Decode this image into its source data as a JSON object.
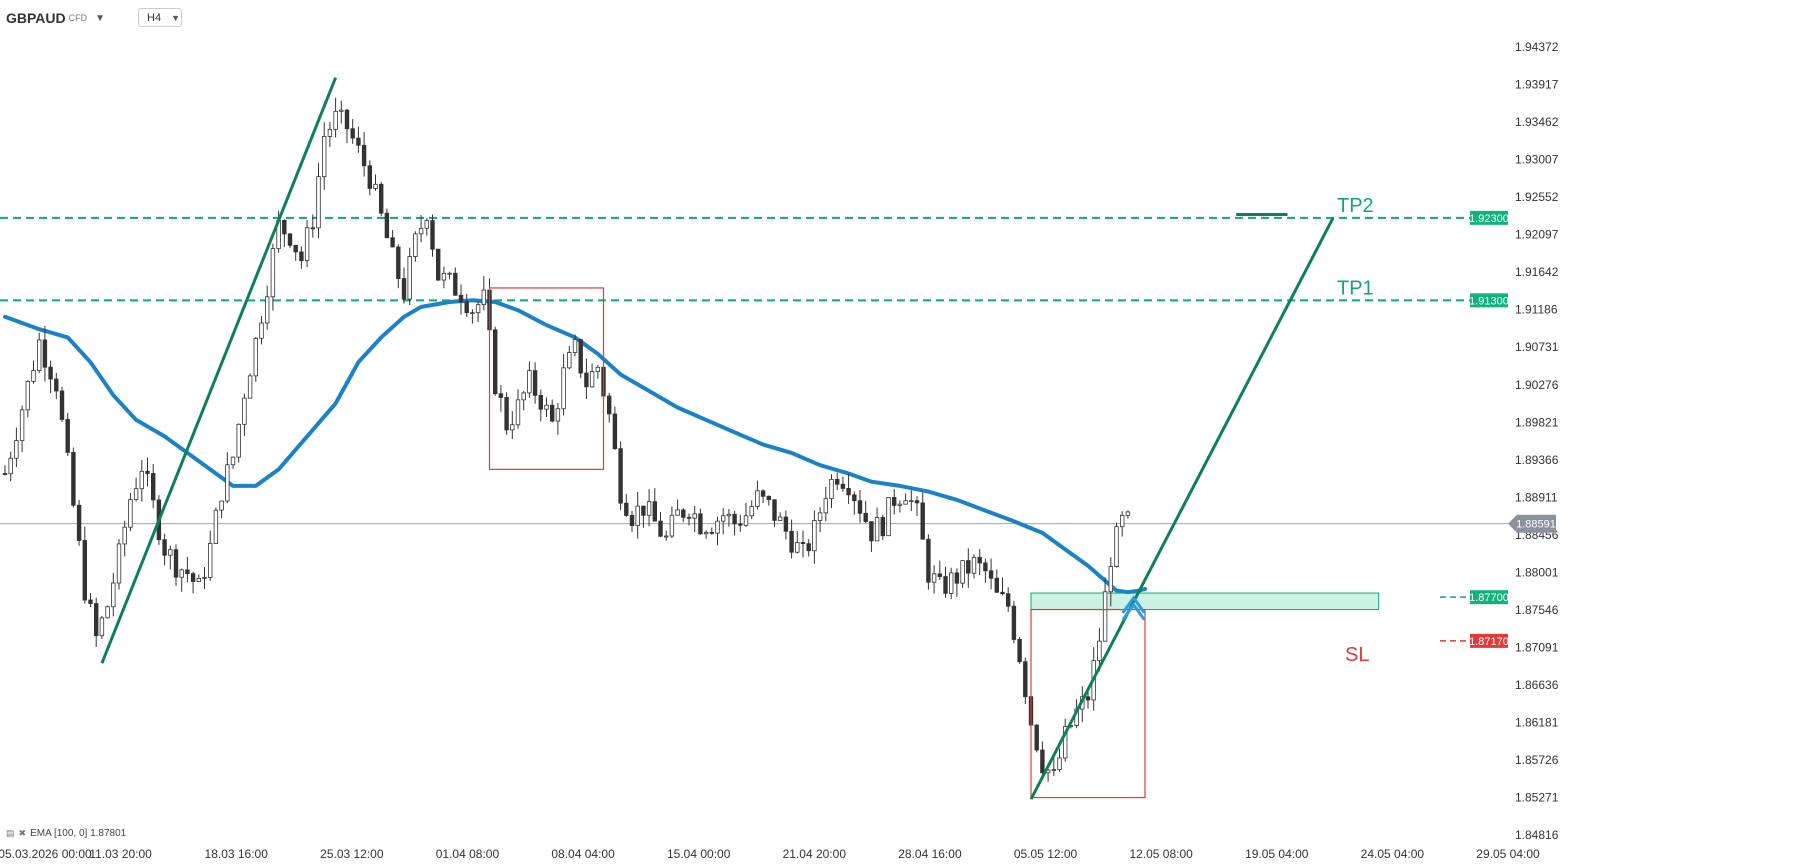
{
  "header": {
    "symbol": "GBPAUD",
    "symbol_type": "CFD",
    "timeframe": "H4"
  },
  "indicator": {
    "label": "EMA [100, 0] 1.87801"
  },
  "colors": {
    "candle": "#333333",
    "ema": "#1b82c6",
    "trend": "#0f8055",
    "tp_line": "#10a86f",
    "tp_tag": "#12b37a",
    "sl": "#e03b3b",
    "box": "#e03b3b",
    "zone": "#8fe3c4",
    "last_price_tag": "#8a939b"
  },
  "chart_data": {
    "type": "candlestick",
    "symbol": "GBPAUD",
    "timeframe": "H4",
    "y_ticks": [
      "1.94372",
      "1.93917",
      "1.93462",
      "1.93007",
      "1.92552",
      "1.92097",
      "1.91642",
      "1.91186",
      "1.90731",
      "1.90276",
      "1.89821",
      "1.89366",
      "1.88911",
      "1.88456",
      "1.88001",
      "1.87546",
      "1.87091",
      "1.86636",
      "1.86181",
      "1.85726",
      "1.85271",
      "1.84816"
    ],
    "ylim": [
      1.84816,
      1.94372
    ],
    "x_ticks": [
      "05.03.2026 00:00",
      "11.03 20:00",
      "18.03 16:00",
      "25.03 12:00",
      "01.04 08:00",
      "08.04 04:00",
      "15.04 00:00",
      "21.04 20:00",
      "28.04 16:00",
      "05.05 12:00",
      "12.05 08:00",
      "19.05 04:00",
      "24.05 04:00",
      "29.05 04:00"
    ],
    "last_price": "1.88591",
    "levels": [
      {
        "name": "TP2",
        "value": 1.923,
        "tag": "1.92300"
      },
      {
        "name": "TP1",
        "value": 1.913,
        "tag": "1.91300"
      },
      {
        "name": "",
        "value": 1.877,
        "tag": "1.87700"
      },
      {
        "name": "SL",
        "value": 1.8717,
        "tag": "1.87170"
      }
    ],
    "ema_100": [
      [
        0,
        1.911
      ],
      [
        6,
        1.9095
      ],
      [
        11,
        1.9085
      ],
      [
        15,
        1.9055
      ],
      [
        19,
        1.9015
      ],
      [
        23,
        1.8985
      ],
      [
        28,
        1.8965
      ],
      [
        33,
        1.894
      ],
      [
        38,
        1.8915
      ],
      [
        40,
        1.8905
      ],
      [
        44,
        1.8905
      ],
      [
        48,
        1.8925
      ],
      [
        53,
        1.8965
      ],
      [
        58,
        1.9005
      ],
      [
        62,
        1.9055
      ],
      [
        66,
        1.9085
      ],
      [
        70,
        1.911
      ],
      [
        73,
        1.9122
      ],
      [
        78,
        1.9128
      ],
      [
        82,
        1.913
      ],
      [
        86,
        1.9128
      ],
      [
        90,
        1.9118
      ],
      [
        95,
        1.91
      ],
      [
        100,
        1.9085
      ],
      [
        104,
        1.9065
      ],
      [
        108,
        1.904
      ],
      [
        113,
        1.902
      ],
      [
        118,
        1.9
      ],
      [
        123,
        1.8985
      ],
      [
        128,
        1.897
      ],
      [
        133,
        1.8955
      ],
      [
        138,
        1.8945
      ],
      [
        143,
        1.893
      ],
      [
        148,
        1.892
      ],
      [
        152,
        1.891
      ],
      [
        157,
        1.8905
      ],
      [
        162,
        1.8898
      ],
      [
        167,
        1.8888
      ],
      [
        172,
        1.8875
      ],
      [
        177,
        1.8862
      ],
      [
        182,
        1.8848
      ],
      [
        186,
        1.8828
      ],
      [
        190,
        1.8808
      ],
      [
        193,
        1.879
      ],
      [
        195,
        1.8778
      ],
      [
        197,
        1.8776
      ],
      [
        199,
        1.8778
      ],
      [
        200,
        1.878
      ]
    ],
    "trendlines": [
      {
        "from": [
          17,
          1.869
        ],
        "to": [
          58,
          1.94
        ]
      },
      {
        "from": [
          180,
          1.8525
        ],
        "to": [
          233,
          1.923
        ]
      }
    ],
    "boxes": [
      {
        "from": [
          85,
          1.9145
        ],
        "to": [
          105,
          1.8925
        ]
      },
      {
        "from": [
          180,
          1.8755
        ],
        "to": [
          200,
          1.8527
        ]
      }
    ],
    "zone": {
      "x_start": 180,
      "x_end": 241,
      "y_low": 1.8755,
      "y_high": 1.8775
    },
    "tp2_marker": {
      "from": 216,
      "to": 225,
      "value": 1.9234
    },
    "buy_signal": {
      "x": 198,
      "value": 1.8762
    },
    "path": [
      [
        0,
        1.892
      ],
      [
        3,
        1.9
      ],
      [
        6,
        1.908
      ],
      [
        9,
        1.903
      ],
      [
        12,
        1.888
      ],
      [
        14,
        1.878
      ],
      [
        16,
        1.872
      ],
      [
        18,
        1.876
      ],
      [
        20,
        1.882
      ],
      [
        22,
        1.889
      ],
      [
        24,
        1.893
      ],
      [
        26,
        1.888
      ],
      [
        28,
        1.883
      ],
      [
        30,
        1.881
      ],
      [
        32,
        1.88
      ],
      [
        34,
        1.878
      ],
      [
        36,
        1.883
      ],
      [
        38,
        1.89
      ],
      [
        40,
        1.894
      ],
      [
        42,
        1.902
      ],
      [
        44,
        1.908
      ],
      [
        46,
        1.915
      ],
      [
        48,
        1.922
      ],
      [
        50,
        1.921
      ],
      [
        52,
        1.918
      ],
      [
        54,
        1.923
      ],
      [
        56,
        1.933
      ],
      [
        58,
        1.935
      ],
      [
        60,
        1.934
      ],
      [
        62,
        1.931
      ],
      [
        64,
        1.928
      ],
      [
        66,
        1.923
      ],
      [
        68,
        1.918
      ],
      [
        70,
        1.914
      ],
      [
        72,
        1.92
      ],
      [
        74,
        1.924
      ],
      [
        76,
        1.916
      ],
      [
        78,
        1.915
      ],
      [
        80,
        1.914
      ],
      [
        82,
        1.912
      ],
      [
        84,
        1.913
      ],
      [
        86,
        1.903
      ],
      [
        88,
        1.898
      ],
      [
        90,
        1.9
      ],
      [
        92,
        1.903
      ],
      [
        94,
        1.901
      ],
      [
        96,
        1.898
      ],
      [
        98,
        1.904
      ],
      [
        100,
        1.907
      ],
      [
        102,
        1.903
      ],
      [
        104,
        1.905
      ],
      [
        106,
        1.899
      ],
      [
        108,
        1.89
      ],
      [
        110,
        1.887
      ],
      [
        112,
        1.888
      ],
      [
        114,
        1.886
      ],
      [
        116,
        1.884
      ],
      [
        118,
        1.887
      ],
      [
        120,
        1.888
      ],
      [
        122,
        1.886
      ],
      [
        124,
        1.886
      ],
      [
        126,
        1.887
      ],
      [
        128,
        1.886
      ],
      [
        130,
        1.887
      ],
      [
        132,
        1.889
      ],
      [
        134,
        1.888
      ],
      [
        136,
        1.886
      ],
      [
        138,
        1.884
      ],
      [
        140,
        1.882
      ],
      [
        142,
        1.885
      ],
      [
        144,
        1.89
      ],
      [
        146,
        1.892
      ],
      [
        148,
        1.891
      ],
      [
        150,
        1.888
      ],
      [
        152,
        1.885
      ],
      [
        154,
        1.886
      ],
      [
        156,
        1.889
      ],
      [
        158,
        1.89
      ],
      [
        160,
        1.887
      ],
      [
        162,
        1.88
      ],
      [
        164,
        1.878
      ],
      [
        166,
        1.879
      ],
      [
        168,
        1.88
      ],
      [
        170,
        1.881
      ],
      [
        172,
        1.88
      ],
      [
        174,
        1.877
      ],
      [
        176,
        1.876
      ],
      [
        178,
        1.87
      ],
      [
        180,
        1.862
      ],
      [
        182,
        1.857
      ],
      [
        184,
        1.855
      ],
      [
        186,
        1.86
      ],
      [
        188,
        1.863
      ],
      [
        190,
        1.865
      ],
      [
        192,
        1.872
      ],
      [
        194,
        1.882
      ],
      [
        196,
        1.886
      ],
      [
        197,
        1.886
      ]
    ]
  }
}
